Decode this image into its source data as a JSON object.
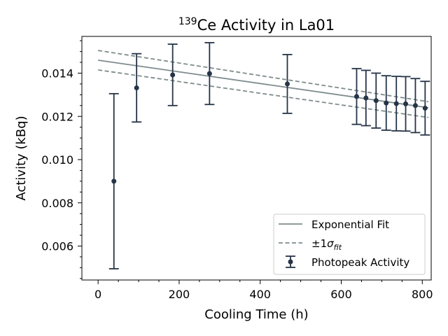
{
  "chart_data": {
    "type": "scatter",
    "title_prefix": "139",
    "title_main": "Ce Activity in La01",
    "xlabel": "Cooling Time (h)",
    "ylabel": "Activity (kBq)",
    "xlim": [
      -40,
      822
    ],
    "ylim": [
      0.00443,
      0.0157
    ],
    "x_ticks": [
      0,
      200,
      400,
      600,
      800
    ],
    "x_tick_labels": [
      "0",
      "200",
      "400",
      "600",
      "800"
    ],
    "y_ticks": [
      0.006,
      0.008,
      0.01,
      0.012,
      0.014
    ],
    "y_tick_labels": [
      "0.006",
      "0.008",
      "0.010",
      "0.012",
      "0.014"
    ],
    "x_minor_step": 50,
    "y_minor_step": 0.0005,
    "grid": false,
    "legend_position": "lower-right",
    "series": [
      {
        "name": "Photopeak Activity",
        "kind": "errorbar",
        "color": "#253447",
        "points": [
          {
            "x": 39,
            "y": 0.009,
            "err": 0.00405
          },
          {
            "x": 95,
            "y": 0.01332,
            "err": 0.00158
          },
          {
            "x": 184,
            "y": 0.01392,
            "err": 0.00142
          },
          {
            "x": 275,
            "y": 0.01398,
            "err": 0.00143
          },
          {
            "x": 467,
            "y": 0.0135,
            "err": 0.00136
          },
          {
            "x": 638,
            "y": 0.01292,
            "err": 0.00129
          },
          {
            "x": 661,
            "y": 0.01285,
            "err": 0.00128
          },
          {
            "x": 686,
            "y": 0.01273,
            "err": 0.00127
          },
          {
            "x": 711,
            "y": 0.01262,
            "err": 0.00126
          },
          {
            "x": 736,
            "y": 0.01259,
            "err": 0.00126
          },
          {
            "x": 759,
            "y": 0.01258,
            "err": 0.00126
          },
          {
            "x": 783,
            "y": 0.0125,
            "err": 0.00125
          },
          {
            "x": 807,
            "y": 0.01238,
            "err": 0.00124
          }
        ]
      },
      {
        "name": "Exponential Fit",
        "kind": "line",
        "color": "#7f8c8d",
        "x": [
          0,
          815
        ],
        "y": [
          0.0146,
          0.0124
        ]
      },
      {
        "name_prefix": "±1",
        "name_symbol": "σ",
        "name_subscript": "fit",
        "kind": "band",
        "color": "#7f8c8d",
        "x": [
          0,
          815
        ],
        "upper": [
          0.01505,
          0.01268
        ],
        "lower": [
          0.01415,
          0.01195
        ]
      }
    ]
  }
}
